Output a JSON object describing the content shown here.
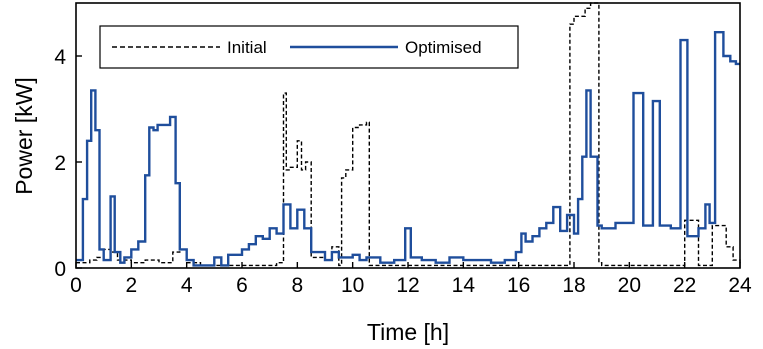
{
  "chart_data": {
    "type": "line",
    "step": true,
    "xlabel": "Time [h]",
    "ylabel": "Power [kW]",
    "xlim": [
      0,
      24
    ],
    "ylim": [
      0,
      5
    ],
    "xticks": [
      0,
      2,
      4,
      6,
      8,
      10,
      12,
      14,
      16,
      18,
      20,
      22,
      24
    ],
    "yticks": [
      0,
      2,
      4
    ],
    "grid": false,
    "legend_position": "top-left",
    "series": [
      {
        "name": "Initial",
        "style": "dashed",
        "color": "#000000",
        "x": [
          0,
          0.5,
          0.75,
          1.0,
          1.25,
          1.5,
          2.0,
          2.5,
          3.0,
          3.5,
          3.75,
          4.0,
          4.5,
          5.0,
          5.5,
          6.0,
          6.5,
          7.0,
          7.25,
          7.5,
          7.6,
          7.75,
          8.0,
          8.15,
          8.3,
          8.5,
          9.0,
          9.25,
          9.5,
          9.6,
          9.75,
          10.0,
          10.25,
          10.5,
          10.6,
          11.0,
          11.5,
          12.0,
          12.5,
          13.0,
          14.0,
          15.0,
          16.0,
          17.0,
          17.6,
          17.85,
          18.0,
          18.4,
          18.6,
          18.9,
          19.0,
          19.5,
          20.0,
          21.0,
          21.5,
          21.75,
          22.0,
          22.5,
          23.0,
          23.5,
          23.75,
          24.0
        ],
        "y": [
          0.1,
          0.15,
          0.2,
          0.35,
          0.3,
          0.15,
          0.1,
          0.15,
          0.1,
          0.3,
          0.35,
          0.1,
          0.05,
          0.05,
          0.05,
          0.05,
          0.05,
          0.05,
          0.1,
          3.3,
          1.85,
          1.9,
          2.4,
          1.85,
          2.0,
          0.2,
          0.15,
          0.4,
          0.05,
          1.7,
          1.85,
          2.65,
          2.7,
          2.75,
          0.05,
          0.05,
          0.05,
          0.05,
          0.05,
          0.05,
          0.05,
          0.05,
          0.05,
          0.05,
          0.05,
          4.6,
          4.75,
          4.9,
          5.0,
          0.1,
          0.05,
          0.05,
          0.05,
          0.05,
          0.05,
          0.05,
          0.9,
          0.05,
          0.8,
          0.4,
          0.15,
          0.05
        ]
      },
      {
        "name": "Optimised",
        "style": "solid",
        "color": "#1f4e9c",
        "x": [
          0,
          0.25,
          0.4,
          0.55,
          0.7,
          0.85,
          1.0,
          1.25,
          1.4,
          1.6,
          1.75,
          2.0,
          2.25,
          2.5,
          2.65,
          2.8,
          2.95,
          3.4,
          3.6,
          3.75,
          4.0,
          4.25,
          4.5,
          5.0,
          5.25,
          5.5,
          6.0,
          6.25,
          6.5,
          6.75,
          7.0,
          7.25,
          7.5,
          7.75,
          8.0,
          8.25,
          8.5,
          9.0,
          9.25,
          9.5,
          10.0,
          10.25,
          10.5,
          11.0,
          11.5,
          11.9,
          12.1,
          12.5,
          13.0,
          13.5,
          14.0,
          15.0,
          15.5,
          15.9,
          16.1,
          16.25,
          16.5,
          16.75,
          17.0,
          17.25,
          17.5,
          17.75,
          18.0,
          18.15,
          18.3,
          18.45,
          18.6,
          18.85,
          19.0,
          19.5,
          19.9,
          20.15,
          20.5,
          20.85,
          21.1,
          21.5,
          21.85,
          22.1,
          22.5,
          22.75,
          22.9,
          23.1,
          23.4,
          23.65,
          23.85,
          24.0
        ],
        "y": [
          0.15,
          1.3,
          2.4,
          3.35,
          2.6,
          0.35,
          0.15,
          1.35,
          0.3,
          0.1,
          0.2,
          0.35,
          0.5,
          1.75,
          2.65,
          2.6,
          2.7,
          2.85,
          1.6,
          0.35,
          0.15,
          0.05,
          0.05,
          0.2,
          0.05,
          0.25,
          0.35,
          0.45,
          0.6,
          0.55,
          0.75,
          0.65,
          1.2,
          0.75,
          1.1,
          0.75,
          0.3,
          0.15,
          0.3,
          0.2,
          0.25,
          0.15,
          0.2,
          0.1,
          0.15,
          0.75,
          0.2,
          0.15,
          0.1,
          0.2,
          0.15,
          0.1,
          0.15,
          0.3,
          0.65,
          0.5,
          0.6,
          0.75,
          0.85,
          1.15,
          0.7,
          1.0,
          0.65,
          1.3,
          2.1,
          3.35,
          2.1,
          0.8,
          0.75,
          0.85,
          0.85,
          3.3,
          0.8,
          3.15,
          0.8,
          0.75,
          4.3,
          0.6,
          0.75,
          1.2,
          0.85,
          4.45,
          4.0,
          3.9,
          3.85,
          3.85
        ]
      }
    ]
  }
}
